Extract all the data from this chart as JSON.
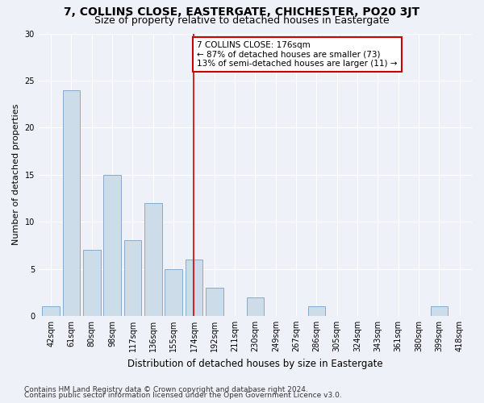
{
  "title": "7, COLLINS CLOSE, EASTERGATE, CHICHESTER, PO20 3JT",
  "subtitle": "Size of property relative to detached houses in Eastergate",
  "xlabel": "Distribution of detached houses by size in Eastergate",
  "ylabel": "Number of detached properties",
  "categories": [
    "42sqm",
    "61sqm",
    "80sqm",
    "98sqm",
    "117sqm",
    "136sqm",
    "155sqm",
    "174sqm",
    "192sqm",
    "211sqm",
    "230sqm",
    "249sqm",
    "267sqm",
    "286sqm",
    "305sqm",
    "324sqm",
    "343sqm",
    "361sqm",
    "380sqm",
    "399sqm",
    "418sqm"
  ],
  "values": [
    1,
    24,
    7,
    15,
    8,
    12,
    5,
    6,
    3,
    0,
    2,
    0,
    0,
    1,
    0,
    0,
    0,
    0,
    0,
    1,
    0
  ],
  "bar_color": "#ccdce8",
  "bar_edge_color": "#88aac8",
  "vline_x": 7,
  "vline_color": "#cc0000",
  "annotation_text": "7 COLLINS CLOSE: 176sqm\n← 87% of detached houses are smaller (73)\n13% of semi-detached houses are larger (11) →",
  "annotation_box_color": "#ffffff",
  "annotation_box_edge": "#cc0000",
  "ylim": [
    0,
    30
  ],
  "yticks": [
    0,
    5,
    10,
    15,
    20,
    25,
    30
  ],
  "footer1": "Contains HM Land Registry data © Crown copyright and database right 2024.",
  "footer2": "Contains public sector information licensed under the Open Government Licence v3.0.",
  "background_color": "#eef2f8",
  "title_fontsize": 10,
  "subtitle_fontsize": 9,
  "xlabel_fontsize": 8.5,
  "ylabel_fontsize": 8,
  "tick_fontsize": 7,
  "footer_fontsize": 6.5,
  "annotation_fontsize": 7.5
}
